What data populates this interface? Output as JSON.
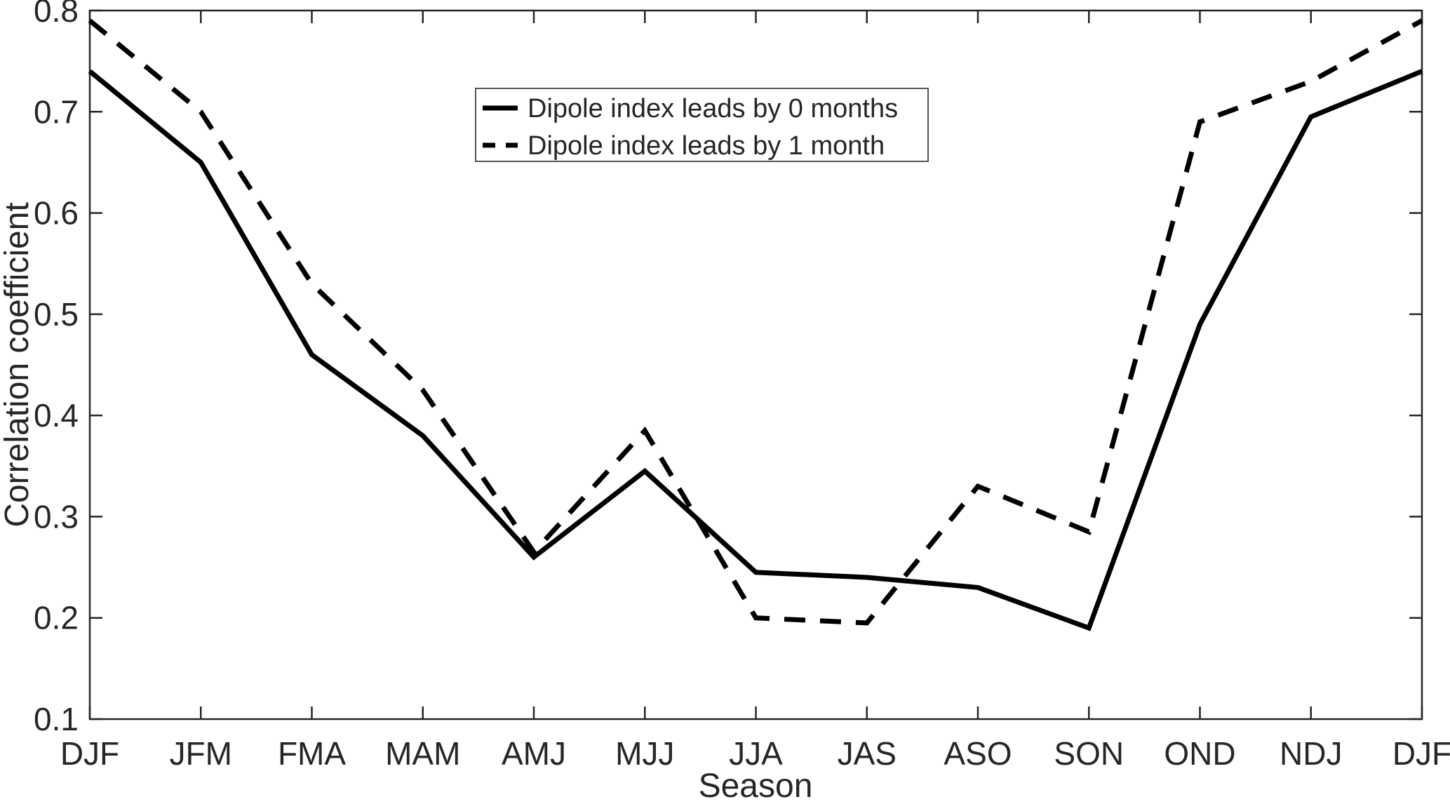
{
  "figure": {
    "background": "#ffffff",
    "axis_color": "#262626",
    "line_color": "#000000",
    "legend_border_color": "#555555"
  },
  "chart_data": {
    "type": "line",
    "title": "",
    "xlabel": "Season",
    "ylabel": "Correlation coefficient",
    "categories": [
      "DJF",
      "JFM",
      "FMA",
      "MAM",
      "AMJ",
      "MJJ",
      "JJA",
      "JAS",
      "ASO",
      "SON",
      "OND",
      "NDJ",
      "DJF"
    ],
    "series": [
      {
        "name": "Dipole index leads by 0 months",
        "line_style": "solid",
        "values": [
          0.74,
          0.65,
          0.46,
          0.38,
          0.26,
          0.345,
          0.245,
          0.24,
          0.23,
          0.19,
          0.49,
          0.695,
          0.74
        ]
      },
      {
        "name": "Dipole index leads by 1 month",
        "line_style": "dashed",
        "values": [
          0.79,
          0.7,
          0.53,
          0.425,
          0.265,
          0.385,
          0.2,
          0.195,
          0.33,
          0.285,
          0.69,
          0.73,
          0.79
        ]
      }
    ],
    "ylim": [
      0.1,
      0.8
    ],
    "yticks": [
      0.1,
      0.2,
      0.3,
      0.4,
      0.5,
      0.6,
      0.7,
      0.8
    ],
    "grid": false,
    "legend_position": "upper-left-inside"
  }
}
